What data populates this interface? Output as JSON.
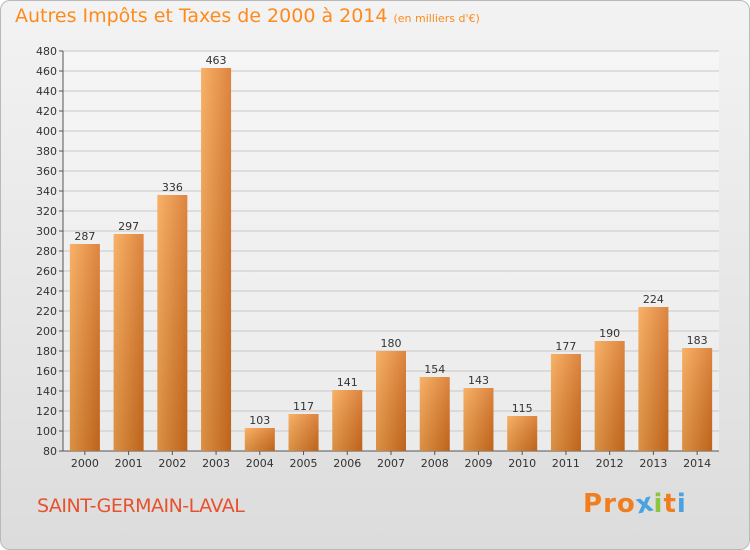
{
  "title": "Autres Impôts et Taxes de 2000 à 2014",
  "subtitle": "(en milliers d'€)",
  "commune": "SAINT-GERMAIN-LAVAL",
  "logo": [
    "P",
    "r",
    "o",
    "x",
    "i",
    "t",
    "i"
  ],
  "colors": {
    "bar_light": "#f7a44e",
    "bar_dark": "#d7701f",
    "title": "#ff8a1c",
    "commune": "#e8512d",
    "grid": "#c8c8c8",
    "logo": [
      "#f07e1f",
      "#f07e1f",
      "#f07e1f",
      "#4aa3df",
      "#8cc63f",
      "#f07e1f",
      "#4aa3df"
    ]
  },
  "chart_data": {
    "type": "bar",
    "title": "Autres Impôts et Taxes de 2000 à 2014",
    "subtitle": "(en milliers d'€)",
    "categories": [
      "2000",
      "2001",
      "2002",
      "2003",
      "2004",
      "2005",
      "2006",
      "2007",
      "2008",
      "2009",
      "2010",
      "2011",
      "2012",
      "2013",
      "2014"
    ],
    "values": [
      287,
      297,
      336,
      463,
      103,
      117,
      141,
      180,
      154,
      143,
      115,
      177,
      190,
      224,
      183
    ],
    "ylim": [
      80,
      480
    ],
    "yticks": [
      80,
      100,
      120,
      140,
      160,
      180,
      200,
      220,
      240,
      260,
      280,
      300,
      320,
      340,
      360,
      380,
      400,
      420,
      440,
      460,
      480
    ],
    "grid": true,
    "legend": "none"
  }
}
